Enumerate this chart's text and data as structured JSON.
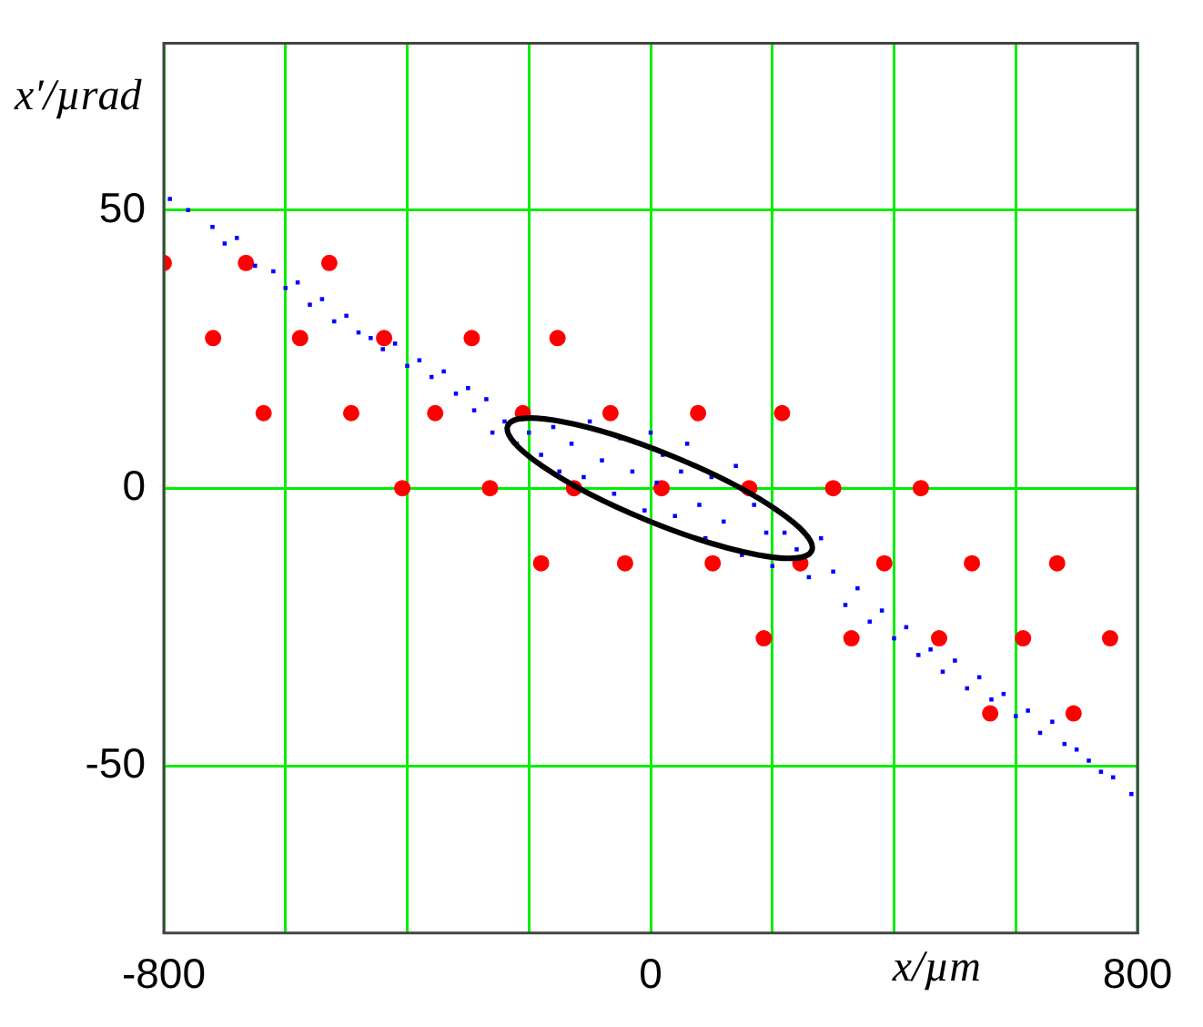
{
  "chart_data": {
    "type": "scatter",
    "xlabel": "x/µm",
    "ylabel": "x′/µrad",
    "xlim": [
      -800,
      800
    ],
    "ylim": [
      -80,
      80
    ],
    "xticks": [
      -800,
      {
        "value": -600,
        "label": null
      },
      {
        "value": -400,
        "label": null
      },
      {
        "value": -200,
        "label": null
      },
      0,
      {
        "value": 200,
        "label": null
      },
      {
        "value": 400,
        "label": null
      },
      {
        "value": 600,
        "label": null
      },
      800
    ],
    "yticks": [
      -50,
      0,
      50
    ],
    "grid": true,
    "series": [
      {
        "type": "scatter",
        "color": "#0000ff",
        "marker": "square",
        "x": [
          -790,
          -760,
          -720,
          -700,
          -680,
          -650,
          -620,
          -600,
          -580,
          -560,
          -540,
          -520,
          -500,
          -480,
          -460,
          -440,
          -420,
          -400,
          -380,
          -360,
          -340,
          -320,
          -300,
          -290,
          -270,
          -260,
          -240,
          -220,
          -200,
          -180,
          -160,
          -150,
          -130,
          -110,
          -100,
          -80,
          -60,
          -50,
          -30,
          -10,
          0,
          10,
          20,
          40,
          50,
          60,
          80,
          90,
          100,
          120,
          140,
          150,
          170,
          190,
          200,
          220,
          240,
          260,
          280,
          300,
          320,
          340,
          360,
          380,
          400,
          420,
          440,
          460,
          480,
          500,
          520,
          540,
          560,
          580,
          600,
          620,
          640,
          660,
          680,
          700,
          720,
          740,
          760,
          790
        ],
        "values": [
          52,
          50,
          47,
          44,
          45,
          40,
          39,
          36,
          37,
          33,
          34,
          30,
          31,
          28,
          27,
          25,
          26,
          22,
          23,
          20,
          21,
          17,
          18,
          14,
          16,
          10,
          12,
          8,
          10,
          6,
          11,
          3,
          8,
          2,
          12,
          5,
          -1,
          9,
          3,
          -4,
          10,
          1,
          6,
          -5,
          3,
          8,
          -3,
          -9,
          2,
          -6,
          4,
          -12,
          -3,
          -8,
          -14,
          -8,
          -11,
          -16,
          -9,
          -15,
          -21,
          -18,
          -24,
          -22,
          -27,
          -25,
          -30,
          -29,
          -33,
          -31,
          -36,
          -34,
          -38,
          -37,
          -41,
          -40,
          -44,
          -42,
          -46,
          -47,
          -49,
          -51,
          -52,
          -55
        ]
      },
      {
        "type": "scatter",
        "color": "#ff0000",
        "marker": "circle",
        "x": [
          -800,
          -665,
          -528,
          -719,
          -576,
          -438,
          -294,
          -153,
          -636,
          -492,
          -354,
          -210,
          -66,
          78,
          216,
          -408,
          -264,
          -126,
          18,
          162,
          300,
          444,
          -180,
          -42,
          102,
          246,
          384,
          528,
          668,
          186,
          330,
          474,
          612,
          755,
          558,
          695
        ],
        "values": [
          40.5,
          40.5,
          40.5,
          27,
          27,
          27,
          27,
          27,
          13.5,
          13.5,
          13.5,
          13.5,
          13.5,
          13.5,
          13.5,
          0,
          0,
          0,
          0,
          0,
          0,
          0,
          -13.5,
          -13.5,
          -13.5,
          -13.5,
          -13.5,
          -13.5,
          -13.5,
          -27,
          -27,
          -27,
          -27,
          -27,
          -40.5,
          -40.5
        ]
      }
    ]
  }
}
